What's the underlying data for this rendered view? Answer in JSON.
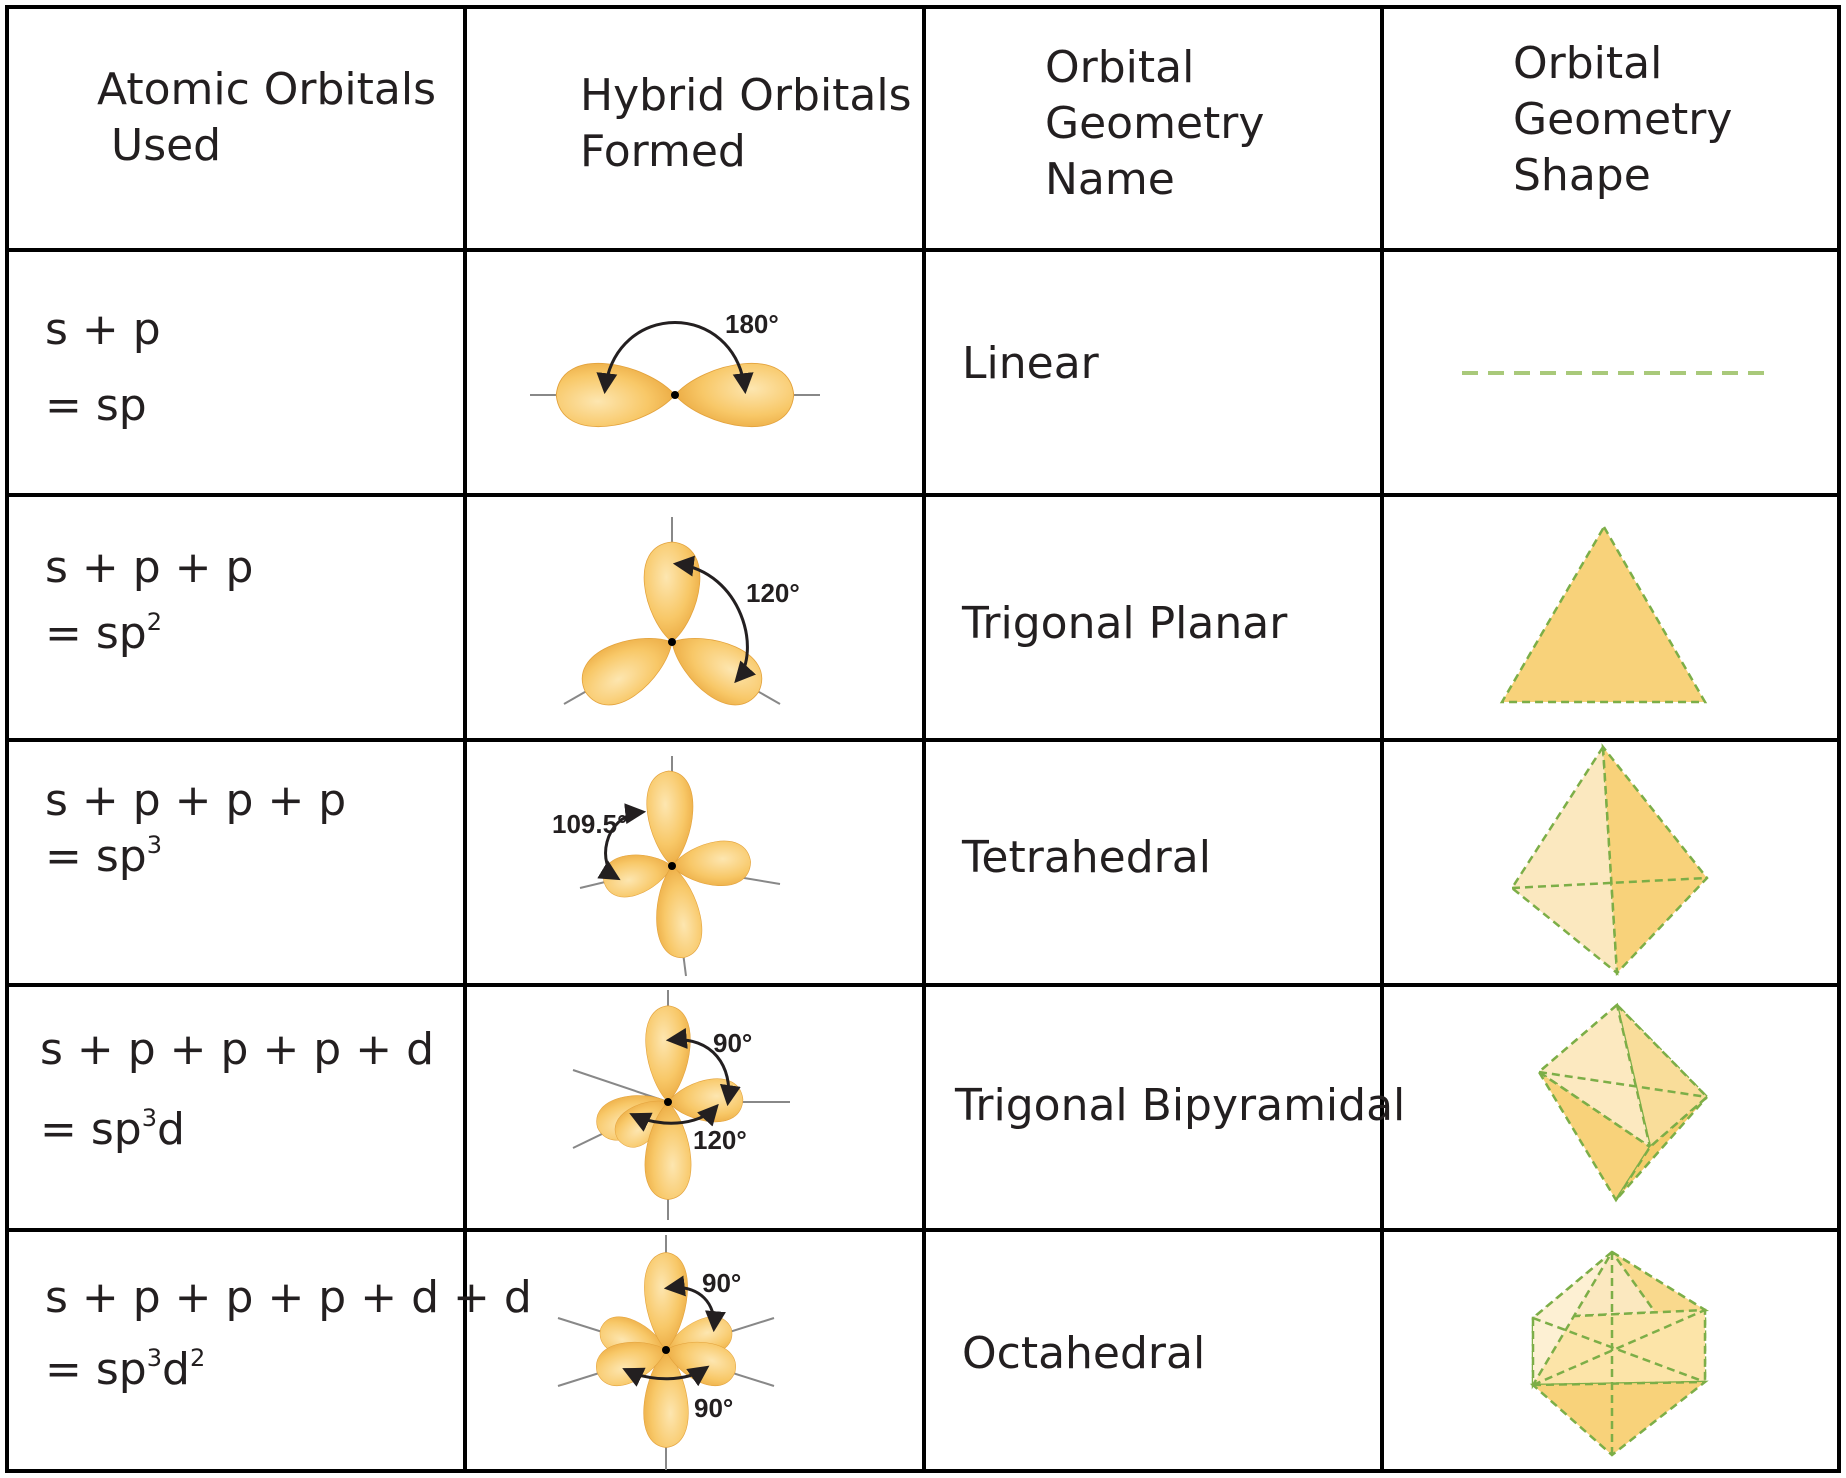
{
  "colors": {
    "border": "#000000",
    "lobe": "#f9c86a",
    "lobe_light": "#fde2a6",
    "shape_fill": "#f8d27a",
    "shape_light": "#fbe8bf",
    "dash": "#7cae47"
  },
  "headers": {
    "atomic": [
      "Atomic Orbitals",
      " Used"
    ],
    "hybrid": [
      "Hybrid Orbitals",
      "Formed"
    ],
    "geometry_name": [
      "Orbital",
      "Geometry",
      "Name"
    ],
    "geometry_shape": [
      "Orbital",
      "Geometry",
      "Shape"
    ]
  },
  "rows": [
    {
      "atomic": "s + p",
      "hybrid_prefix": "= sp",
      "hybrid_sup1": "",
      "hybrid_mid": "",
      "hybrid_sup2": "",
      "angles": [
        "180°"
      ],
      "name": "Linear",
      "shape_icon": "dashed-line-icon"
    },
    {
      "atomic": "s + p + p",
      "hybrid_prefix": "= sp",
      "hybrid_sup1": "2",
      "hybrid_mid": "",
      "hybrid_sup2": "",
      "angles": [
        "120°"
      ],
      "name": "Trigonal Planar",
      "shape_icon": "triangle-icon"
    },
    {
      "atomic": "s + p + p + p",
      "hybrid_prefix": "= sp",
      "hybrid_sup1": "3",
      "hybrid_mid": "",
      "hybrid_sup2": "",
      "angles": [
        "109.5°"
      ],
      "name": "Tetrahedral",
      "shape_icon": "tetrahedron-icon"
    },
    {
      "atomic": "s + p + p + p + d",
      "hybrid_prefix": "= sp",
      "hybrid_sup1": "3",
      "hybrid_mid": "d",
      "hybrid_sup2": "",
      "angles": [
        "90°",
        "120°"
      ],
      "name": "Trigonal Bipyramidal",
      "shape_icon": "bipyramid-icon"
    },
    {
      "atomic": "s + p + p + p + d + d",
      "hybrid_prefix": "= sp",
      "hybrid_sup1": "3",
      "hybrid_mid": "d",
      "hybrid_sup2": "2",
      "angles": [
        "90°",
        "90°"
      ],
      "name": "Octahedral",
      "shape_icon": "octahedron-icon"
    }
  ]
}
